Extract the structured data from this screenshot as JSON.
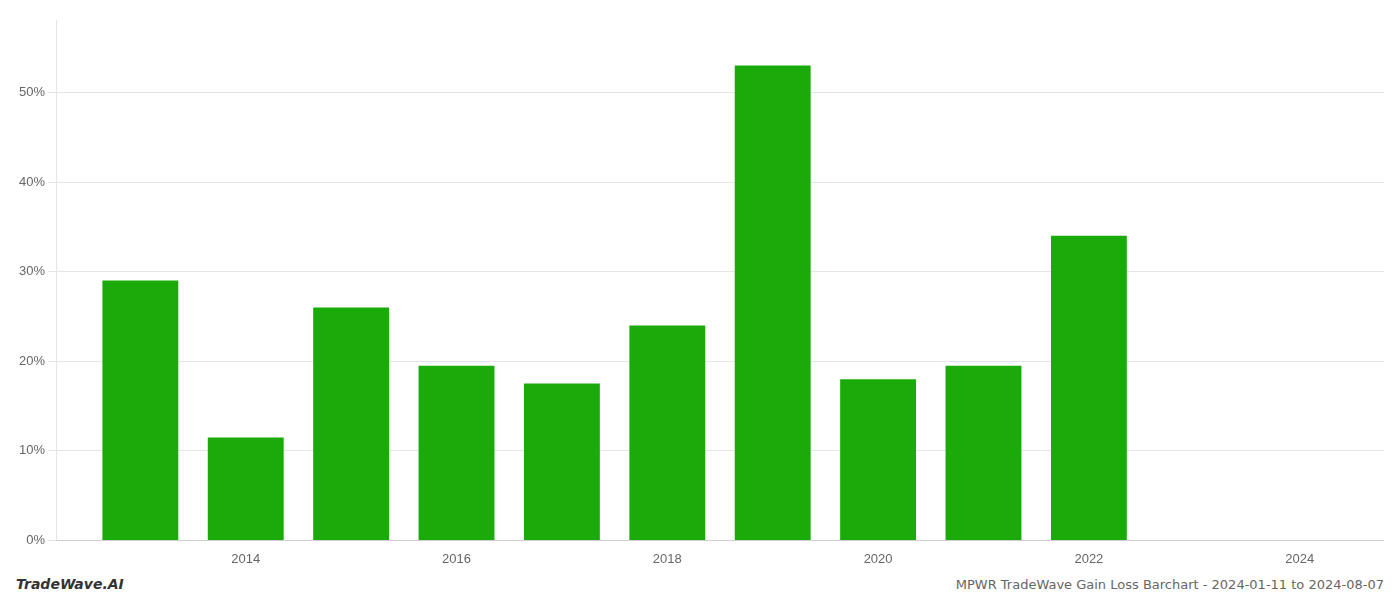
{
  "chart_data": {
    "type": "bar",
    "title": "MPWR TradeWave Gain Loss Barchart - 2024-01-11 to 2024-08-07",
    "annotations": [
      {
        "text": "TradeWave.AI"
      }
    ],
    "x": [
      2013,
      2014,
      2015,
      2016,
      2017,
      2018,
      2019,
      2020,
      2021,
      2022
    ],
    "values": [
      29.0,
      11.5,
      26.0,
      19.5,
      17.5,
      24.0,
      53.0,
      18.0,
      19.5,
      34.0
    ],
    "color": "#1aab0a",
    "xlim": [
      2012.2,
      2024.8
    ],
    "xticks": [
      2014,
      2016,
      2018,
      2020,
      2022,
      2024
    ],
    "ylim": [
      0,
      58
    ],
    "yticks": [
      {
        "value": 0,
        "label": "0%"
      },
      {
        "value": 10,
        "label": "10%"
      },
      {
        "value": 20,
        "label": "20%"
      },
      {
        "value": 30,
        "label": "30%"
      },
      {
        "value": 40,
        "label": "40%"
      },
      {
        "value": 50,
        "label": "50%"
      }
    ],
    "grid": "y"
  }
}
